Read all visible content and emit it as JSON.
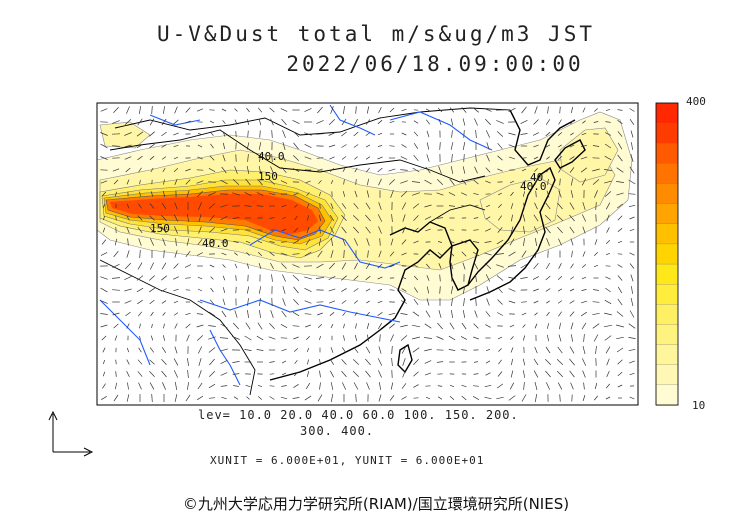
{
  "title": {
    "line1": "U-V&Dust total m/s&ug/m3 JST",
    "line2": "2022/06/18.09:00:00"
  },
  "colorbar": {
    "max_label": "400",
    "min_label": "10",
    "colors": [
      "#fffbd2",
      "#fff7b4",
      "#fff59b",
      "#fff380",
      "#fff063",
      "#ffec3c",
      "#ffe81a",
      "#ffd400",
      "#ffc000",
      "#ffa400",
      "#ff8c00",
      "#ff7400",
      "#ff5a00",
      "#ff3c00",
      "#ff2800"
    ]
  },
  "contour_labels": [
    "40.0",
    "150",
    "40.0",
    "150",
    "40",
    "40.0"
  ],
  "legend": {
    "lev_line1": "lev= 10.0 20.0 40.0 60.0 100. 150. 200.",
    "lev_line2": "300. 400."
  },
  "units": "XUNIT = 6.000E+01, YUNIT = 6.000E+01",
  "copyright": "©九州大学応用力学研究所(RIAM)/国立環境研究所(NIES)"
}
